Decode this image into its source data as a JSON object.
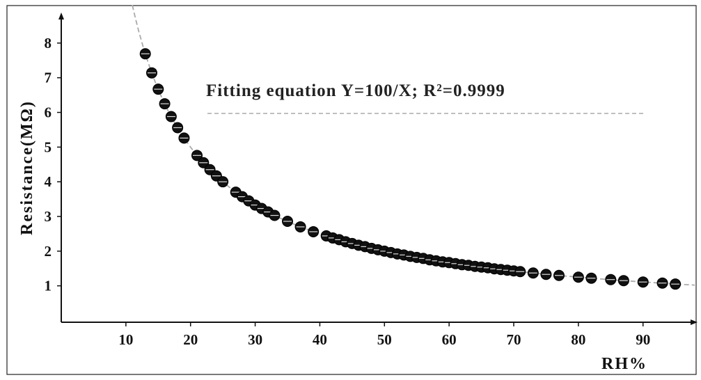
{
  "chart_data": {
    "type": "scatter",
    "xlabel": "RH%",
    "ylabel": "Resistance(MΩ)",
    "xlim": [
      0,
      98
    ],
    "ylim": [
      -0.05,
      8.8
    ],
    "x_ticks": [
      "10",
      "20",
      "30",
      "40",
      "50",
      "60",
      "70",
      "80",
      "90"
    ],
    "y_ticks": [
      "1",
      "2",
      "3",
      "4",
      "5",
      "6",
      "7",
      "8"
    ],
    "annotation": "Fitting equation Y=100/X; R²=0.9999",
    "fit": {
      "equation": "Y=100/X",
      "x_range": [
        11,
        98
      ]
    },
    "series": [
      {
        "x": [
          13,
          14,
          15,
          16,
          17,
          18,
          19,
          21,
          22,
          23,
          24,
          25,
          27,
          28,
          29,
          30,
          31,
          32,
          33,
          35,
          37,
          39,
          41,
          42,
          43,
          44,
          45,
          46,
          47,
          48,
          49,
          50,
          51,
          52,
          53,
          54,
          55,
          56,
          57,
          58,
          59,
          60,
          61,
          62,
          63,
          64,
          65,
          66,
          67,
          68,
          69,
          70,
          71,
          73,
          75,
          77,
          80,
          82,
          85,
          87,
          90,
          93,
          95
        ],
        "y": [
          7.69,
          7.14,
          6.67,
          6.25,
          5.88,
          5.56,
          5.26,
          4.76,
          4.55,
          4.35,
          4.17,
          4.0,
          3.7,
          3.57,
          3.45,
          3.33,
          3.23,
          3.13,
          3.03,
          2.86,
          2.7,
          2.56,
          2.44,
          2.38,
          2.33,
          2.27,
          2.22,
          2.17,
          2.13,
          2.08,
          2.04,
          2.0,
          1.96,
          1.92,
          1.89,
          1.85,
          1.82,
          1.79,
          1.75,
          1.72,
          1.69,
          1.67,
          1.64,
          1.61,
          1.59,
          1.56,
          1.54,
          1.52,
          1.49,
          1.47,
          1.45,
          1.43,
          1.41,
          1.37,
          1.33,
          1.3,
          1.25,
          1.22,
          1.18,
          1.15,
          1.11,
          1.08,
          1.05
        ]
      }
    ],
    "colors": {
      "marker": "#111111",
      "fit_line": "#aaaaaa",
      "axis": "#111111"
    }
  }
}
